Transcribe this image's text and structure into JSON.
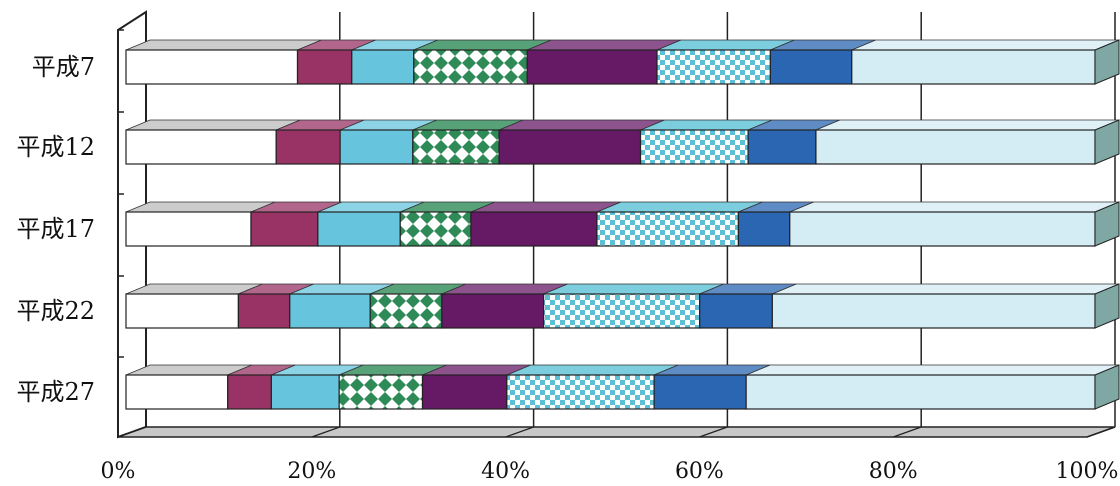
{
  "chart_data": {
    "type": "bar",
    "stacked": "percent",
    "orientation": "horizontal",
    "style": "3d",
    "grid": true,
    "legend": "none",
    "categories": [
      "平成7",
      "平成12",
      "平成17",
      "平成22",
      "平成27"
    ],
    "x_ticks": [
      "0%",
      "20%",
      "40%",
      "60%",
      "80%",
      "100%"
    ],
    "xlim": [
      0,
      100
    ],
    "series": [
      {
        "color": "#ffffff",
        "pattern": "solid",
        "values": [
          17.7,
          15.5,
          12.9,
          11.6,
          10.5
        ]
      },
      {
        "color": "#993366",
        "pattern": "solid",
        "values": [
          5.6,
          6.6,
          6.9,
          5.3,
          4.5
        ]
      },
      {
        "color": "#66c5dc",
        "pattern": "solid",
        "values": [
          6.4,
          7.5,
          8.5,
          8.3,
          7.0
        ]
      },
      {
        "color": "#2e8b57",
        "pattern": "diamond",
        "values": [
          11.7,
          8.9,
          7.3,
          7.4,
          8.6
        ]
      },
      {
        "color": "#661a66",
        "pattern": "solid",
        "values": [
          13.4,
          14.6,
          13.0,
          10.5,
          8.7
        ]
      },
      {
        "color": "#5bc0d6",
        "pattern": "checker",
        "values": [
          11.7,
          11.1,
          14.6,
          16.1,
          15.2
        ]
      },
      {
        "color": "#2a66b1",
        "pattern": "solid",
        "values": [
          8.4,
          7.0,
          5.3,
          7.5,
          9.5
        ]
      },
      {
        "color": "#d4ecf4",
        "pattern": "solid",
        "values": [
          25.1,
          28.8,
          31.5,
          33.3,
          36.0
        ]
      }
    ]
  }
}
